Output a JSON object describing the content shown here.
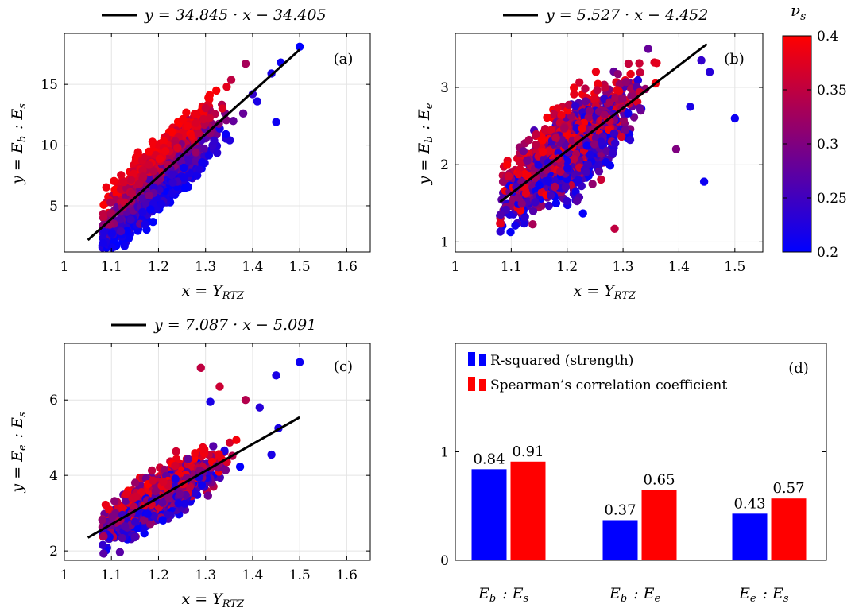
{
  "panels": [
    {
      "tag": "(a)",
      "fit_label": "y = 34.845 · x − 34.405",
      "fit": {
        "slope": 34.845,
        "intercept": -34.405,
        "x_from": 1.05,
        "x_to": 1.5
      },
      "xlabel": "x = Y_RTZ",
      "ylabel": "y = E_b : E_s",
      "xlim": [
        1.0,
        1.65
      ],
      "ylim": [
        1.2,
        19.2
      ],
      "xticks": [
        1,
        1.1,
        1.2,
        1.3,
        1.4,
        1.5,
        1.6
      ],
      "yticks": [
        5,
        10,
        15
      ],
      "grid": true,
      "cloud": {
        "x_center": 1.2,
        "x_spread": 0.055,
        "x_min": 1.08,
        "x_max": 1.36,
        "y_noise": 1.05,
        "nu_effect": 22
      },
      "outliers": [
        {
          "x": 1.5,
          "y": 18.1,
          "nu": 0.2
        },
        {
          "x": 1.46,
          "y": 16.8,
          "nu": 0.21
        },
        {
          "x": 1.44,
          "y": 15.9,
          "nu": 0.22
        },
        {
          "x": 1.45,
          "y": 11.9,
          "nu": 0.21
        },
        {
          "x": 1.41,
          "y": 13.6,
          "nu": 0.22
        },
        {
          "x": 1.385,
          "y": 16.7,
          "nu": 0.33
        },
        {
          "x": 1.38,
          "y": 12.6,
          "nu": 0.28
        },
        {
          "x": 1.12,
          "y": 2.9,
          "nu": 0.26
        },
        {
          "x": 1.4,
          "y": 14.2,
          "nu": 0.24
        }
      ]
    },
    {
      "tag": "(b)",
      "fit_label": "y = 5.527 · x − 4.452",
      "fit": {
        "slope": 5.527,
        "intercept": -4.452,
        "x_from": 1.08,
        "x_to": 1.45
      },
      "xlabel": "x = Y_RTZ",
      "ylabel": "y = E_b : E_e",
      "xlim": [
        1.0,
        1.55
      ],
      "ylim": [
        0.87,
        3.7
      ],
      "xticks": [
        1,
        1.1,
        1.2,
        1.3,
        1.4,
        1.5
      ],
      "yticks": [
        1,
        2,
        3
      ],
      "grid": true,
      "cloud": {
        "x_center": 1.2,
        "x_spread": 0.055,
        "x_min": 1.08,
        "x_max": 1.38,
        "y_noise": 0.42,
        "nu_effect": 2.0
      },
      "outliers": [
        {
          "x": 1.5,
          "y": 2.6,
          "nu": 0.21
        },
        {
          "x": 1.445,
          "y": 1.78,
          "nu": 0.21
        },
        {
          "x": 1.455,
          "y": 3.2,
          "nu": 0.23
        },
        {
          "x": 1.44,
          "y": 3.35,
          "nu": 0.24
        },
        {
          "x": 1.42,
          "y": 2.75,
          "nu": 0.22
        },
        {
          "x": 1.395,
          "y": 2.2,
          "nu": 0.3
        },
        {
          "x": 1.285,
          "y": 1.17,
          "nu": 0.35
        },
        {
          "x": 1.08,
          "y": 1.24,
          "nu": 0.38
        },
        {
          "x": 1.345,
          "y": 3.5,
          "nu": 0.28
        }
      ]
    },
    {
      "tag": "(c)",
      "fit_label": "y = 7.087 · x − 5.091",
      "fit": {
        "slope": 7.087,
        "intercept": -5.091,
        "x_from": 1.05,
        "x_to": 1.5
      },
      "xlabel": "x = Y_RTZ",
      "ylabel": "y = E_e : E_s",
      "xlim": [
        1.0,
        1.65
      ],
      "ylim": [
        1.75,
        7.5
      ],
      "xticks": [
        1,
        1.1,
        1.2,
        1.3,
        1.4,
        1.5,
        1.6
      ],
      "yticks": [
        2,
        4,
        6
      ],
      "grid": true,
      "cloud": {
        "x_center": 1.2,
        "x_spread": 0.055,
        "x_min": 1.08,
        "x_max": 1.38,
        "y_noise": 0.45,
        "nu_effect": 2.2
      },
      "outliers": [
        {
          "x": 1.5,
          "y": 7.0,
          "nu": 0.21
        },
        {
          "x": 1.45,
          "y": 6.65,
          "nu": 0.22
        },
        {
          "x": 1.29,
          "y": 6.85,
          "nu": 0.35
        },
        {
          "x": 1.385,
          "y": 6.0,
          "nu": 0.34
        },
        {
          "x": 1.455,
          "y": 5.25,
          "nu": 0.22
        },
        {
          "x": 1.44,
          "y": 4.55,
          "nu": 0.22
        },
        {
          "x": 1.33,
          "y": 6.35,
          "nu": 0.36
        },
        {
          "x": 1.31,
          "y": 5.95,
          "nu": 0.22
        },
        {
          "x": 1.415,
          "y": 5.8,
          "nu": 0.23
        }
      ]
    }
  ],
  "colorbar": {
    "title": "ν_s",
    "min": 0.2,
    "max": 0.4,
    "ticks": [
      "0.2",
      "0.25",
      "0.3",
      "0.35",
      "0.4"
    ],
    "color_low": "#0000ff",
    "color_high": "#ff0000"
  },
  "chart_data": [
    {
      "type": "scatter",
      "panel": "(a)",
      "xlabel": "x = Y_RTZ",
      "ylabel": "y = E_b : E_s",
      "xlim": [
        1.0,
        1.65
      ],
      "ylim": [
        1.2,
        19.2
      ],
      "fit_line": {
        "slope": 34.845,
        "intercept": -34.405
      },
      "color_variable": "ν_s"
    },
    {
      "type": "scatter",
      "panel": "(b)",
      "xlabel": "x = Y_RTZ",
      "ylabel": "y = E_b : E_e",
      "xlim": [
        1.0,
        1.55
      ],
      "ylim": [
        0.87,
        3.7
      ],
      "fit_line": {
        "slope": 5.527,
        "intercept": -4.452
      },
      "color_variable": "ν_s"
    },
    {
      "type": "scatter",
      "panel": "(c)",
      "xlabel": "x = Y_RTZ",
      "ylabel": "y = E_e : E_s",
      "xlim": [
        1.0,
        1.65
      ],
      "ylim": [
        1.75,
        7.5
      ],
      "fit_line": {
        "slope": 7.087,
        "intercept": -5.091
      },
      "color_variable": "ν_s"
    },
    {
      "type": "bar",
      "panel": "(d)",
      "categories": [
        "E_b : E_s",
        "E_b : E_e",
        "E_e : E_s"
      ],
      "series": [
        {
          "name": "R-squared (strength)",
          "values": [
            0.84,
            0.37,
            0.43
          ],
          "color": "#0000ff"
        },
        {
          "name": "Spearman’s correlation coefficient",
          "values": [
            0.91,
            0.65,
            0.57
          ],
          "color": "#ff0000"
        }
      ],
      "value_labels": [
        [
          "0.84",
          "0.37",
          "0.43"
        ],
        [
          "0.91",
          "0.65",
          "0.57"
        ]
      ],
      "ylim": [
        0,
        2
      ],
      "yticks": [
        0,
        1
      ],
      "legend_position": "top-left",
      "grid": false
    }
  ]
}
